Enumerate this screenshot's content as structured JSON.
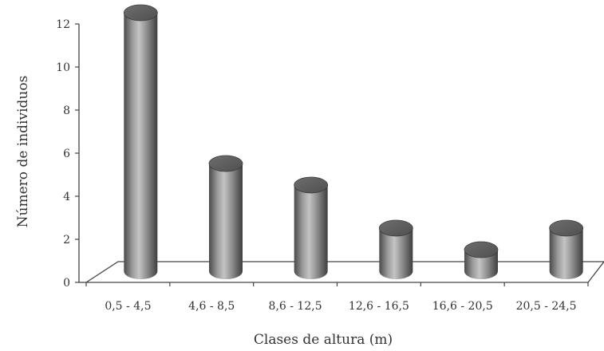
{
  "chart_data": {
    "type": "bar",
    "title": "",
    "xlabel": "Clases de altura (m)",
    "ylabel": "Número de individuos",
    "categories": [
      "0,5 - 4,5",
      "4,6 - 8,5",
      "8,6 - 12,5",
      "12,6 - 16,5",
      "16,6 - 20,5",
      "20,5 - 24,5"
    ],
    "values": [
      12,
      5,
      4,
      2,
      1,
      2
    ],
    "ylim": [
      0,
      12
    ],
    "yticks": [
      "0",
      "2",
      "4",
      "6",
      "8",
      "10",
      "12"
    ],
    "grid": false,
    "legend": "none",
    "style": "3d-cylinder",
    "colors": {
      "bar": "#8a8a8a",
      "bar_light": "#c4c4c4",
      "bar_dark": "#4a4a4a",
      "axis": "#444444"
    }
  }
}
